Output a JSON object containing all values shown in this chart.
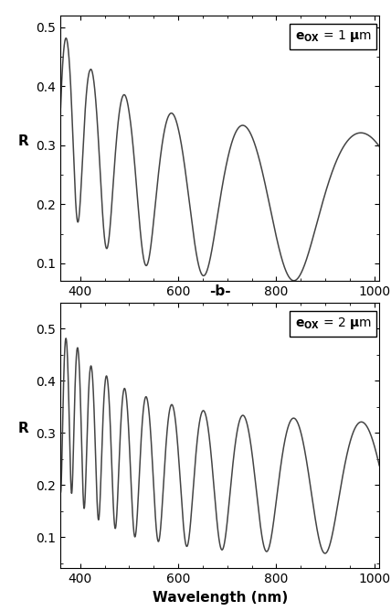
{
  "xlabel": "Wavelength (nm)",
  "ylabel": "R",
  "label_b": "-b-",
  "wavelength_min": 360,
  "wavelength_max": 1010,
  "ylim1": [
    0.07,
    0.52
  ],
  "ylim2": [
    0.04,
    0.55
  ],
  "yticks1": [
    0.1,
    0.2,
    0.3,
    0.4,
    0.5
  ],
  "yticks2": [
    0.1,
    0.2,
    0.3,
    0.4,
    0.5
  ],
  "xticks": [
    400,
    600,
    800,
    1000
  ],
  "eox1_nm": 1000,
  "eox2_nm": 2000,
  "line_color": "#444444",
  "line_width": 1.1,
  "bg_color": "#ffffff",
  "label_fontsize": 11,
  "tick_fontsize": 10,
  "legend_fontsize": 10
}
